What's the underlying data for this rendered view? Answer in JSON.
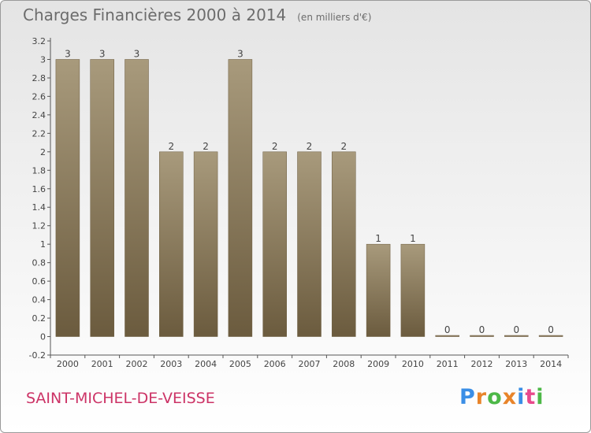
{
  "header": {
    "title": "Charges Financières 2000 à 2014",
    "unit": "(en milliers d'€)"
  },
  "footer": {
    "commune": "SAINT-MICHEL-DE-VEISSE",
    "logo_text": "Proxiti",
    "logo_letter_colors": [
      "#3a8ee6",
      "#e8842a",
      "#4db848",
      "#e8842a",
      "#3a8ee6",
      "#e84a8c",
      "#4db848"
    ]
  },
  "colors": {
    "bar_top": "#a89a7c",
    "bar_bottom": "#6b5b3e",
    "axis": "#555555",
    "text": "#6c6c6c",
    "commune": "#cc3366"
  },
  "chart_data": {
    "type": "bar",
    "categories": [
      "2000",
      "2001",
      "2002",
      "2003",
      "2004",
      "2005",
      "2006",
      "2007",
      "2008",
      "2009",
      "2010",
      "2011",
      "2012",
      "2013",
      "2014"
    ],
    "values": [
      3,
      3,
      3,
      2,
      2,
      3,
      2,
      2,
      2,
      1,
      1,
      0,
      0,
      0,
      0
    ],
    "data_labels": [
      "3",
      "3",
      "3",
      "2",
      "2",
      "3",
      "2",
      "2",
      "2",
      "1",
      "1",
      "0",
      "0",
      "0",
      "0"
    ],
    "yticks": [
      "-0.2",
      "0",
      "0.2",
      "0.4",
      "0.6",
      "0.8",
      "1",
      "1.2",
      "1.4",
      "1.6",
      "1.8",
      "2",
      "2.2",
      "2.4",
      "2.6",
      "2.8",
      "3",
      "3.2"
    ],
    "ylim": [
      -0.2,
      3.2
    ],
    "title": "Charges Financières 2000 à 2014",
    "xlabel": "",
    "ylabel": "",
    "grid": false,
    "legend": "none"
  }
}
